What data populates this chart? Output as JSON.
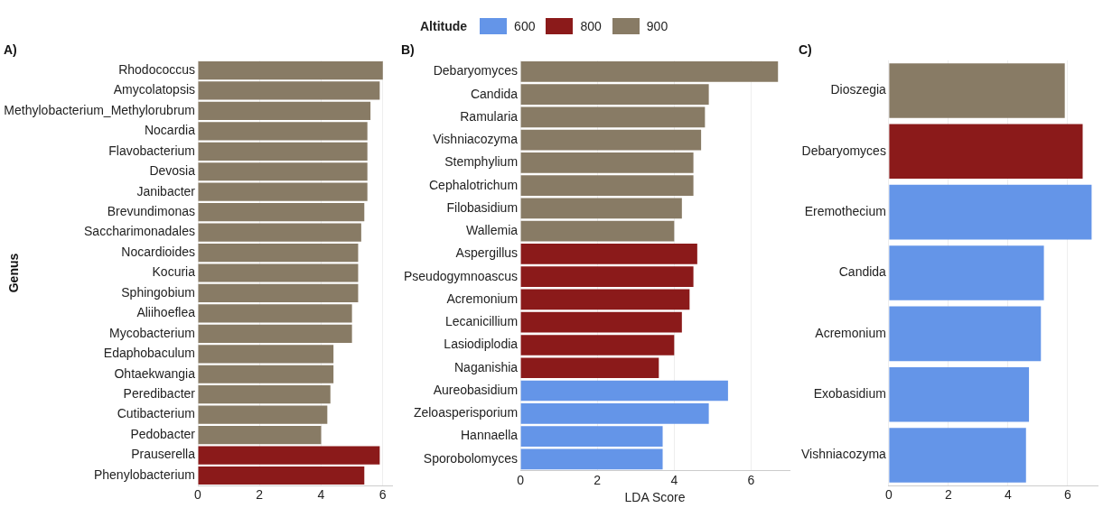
{
  "chart_data": [
    {
      "type": "bar",
      "orientation": "horizontal",
      "title": "A)",
      "ylabel": "Genus",
      "categories": [
        "Rhodococcus",
        "Amycolatopsis",
        "Methylobacterium_Methylorubrum",
        "Nocardia",
        "Flavobacterium",
        "Devosia",
        "Janibacter",
        "Brevundimonas",
        "Saccharimonadales",
        "Nocardioides",
        "Kocuria",
        "Sphingobium",
        "Aliihoeflea",
        "Mycobacterium",
        "Edaphobaculum",
        "Ohtaekwangia",
        "Peredibacter",
        "Cutibacterium",
        "Pedobacter",
        "Prauserella",
        "Phenylobacterium"
      ],
      "series": [
        {
          "color": "#8b1a1a",
          "values": [
            null,
            null,
            null,
            null,
            null,
            null,
            null,
            null,
            null,
            null,
            null,
            null,
            null,
            null,
            null,
            null,
            null,
            null,
            null,
            5.9,
            5.4
          ]
        },
        {
          "color": "#887b65",
          "values": [
            6.0,
            5.9,
            5.6,
            5.5,
            5.5,
            5.5,
            5.5,
            5.4,
            5.3,
            5.2,
            5.2,
            5.2,
            5.0,
            5.0,
            4.4,
            4.4,
            4.3,
            4.2,
            4.0,
            null,
            null
          ]
        }
      ],
      "xlim": [
        0,
        6.3
      ],
      "xticks": [
        0,
        2,
        4,
        6
      ],
      "grid": "x",
      "legend": false
    },
    {
      "type": "bar",
      "orientation": "horizontal",
      "title": "B)",
      "xlabel": "LDA Score",
      "legend_title": "Altitude",
      "categories": [
        "Debaryomyces",
        "Candida",
        "Ramularia",
        "Vishniacozyma",
        "Stemphylium",
        "Cephalotrichum",
        "Filobasidium",
        "Wallemia",
        "Aspergillus",
        "Pseudogymnoascus",
        "Acremonium",
        "Lecanicillium",
        "Lasiodiplodia",
        "Naganishia",
        "Aureobasidium",
        "Zeloasperisporium",
        "Hannaella",
        "Sporobolomyces"
      ],
      "series": [
        {
          "name": "600",
          "color": "#6495e8",
          "values": [
            null,
            null,
            null,
            null,
            null,
            null,
            null,
            null,
            null,
            null,
            null,
            null,
            null,
            null,
            5.4,
            4.9,
            3.7,
            3.7
          ]
        },
        {
          "name": "800",
          "color": "#8b1a1a",
          "values": [
            null,
            null,
            null,
            null,
            null,
            null,
            null,
            null,
            4.6,
            4.5,
            4.4,
            4.2,
            4.0,
            3.6,
            null,
            null,
            null,
            null
          ]
        },
        {
          "name": "900",
          "color": "#887b65",
          "values": [
            6.7,
            4.9,
            4.8,
            4.7,
            4.5,
            4.5,
            4.2,
            4.0,
            null,
            null,
            null,
            null,
            null,
            null,
            null,
            null,
            null,
            null
          ]
        }
      ],
      "xlim": [
        0,
        7
      ],
      "xticks": [
        0,
        2,
        4,
        6
      ],
      "grid": "x",
      "legend": "top"
    },
    {
      "type": "bar",
      "orientation": "horizontal",
      "title": "C)",
      "categories": [
        "Dioszegia",
        "Debaryomyces",
        "Eremothecium",
        "Candida",
        "Acremonium",
        "Exobasidium",
        "Vishniacozyma"
      ],
      "series": [
        {
          "color": "#6495e8",
          "values": [
            null,
            null,
            6.8,
            5.2,
            5.1,
            4.7,
            4.6
          ]
        },
        {
          "color": "#8b1a1a",
          "values": [
            null,
            6.5,
            null,
            null,
            null,
            null,
            null
          ]
        },
        {
          "color": "#887b65",
          "values": [
            5.9,
            null,
            null,
            null,
            null,
            null,
            null
          ]
        }
      ],
      "xlim": [
        0,
        7
      ],
      "xticks": [
        0,
        2,
        4,
        6
      ],
      "grid": "x",
      "legend": false
    }
  ]
}
